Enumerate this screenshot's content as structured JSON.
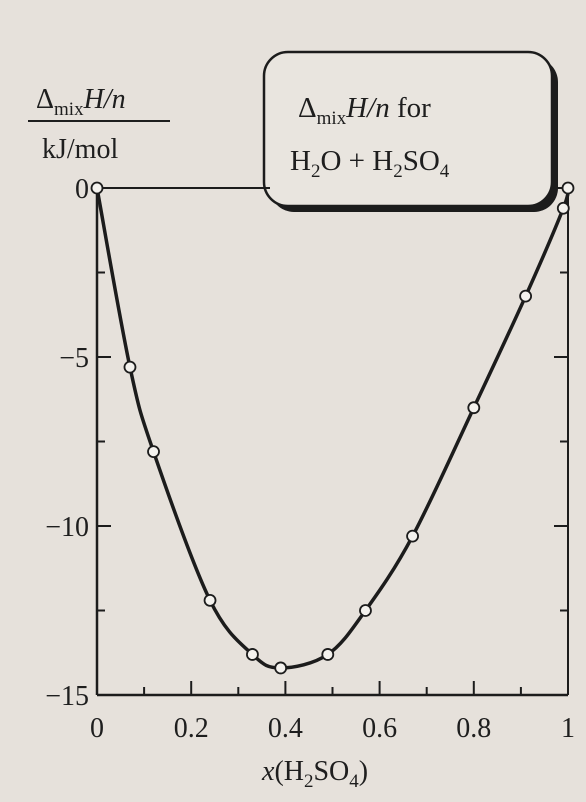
{
  "chart_data": {
    "type": "line",
    "title": "",
    "annotation": {
      "line1": {
        "delta": "Δ",
        "sub": "mix",
        "var": "H/n",
        "rest": " for"
      },
      "line2": {
        "a": "H",
        "a_sub": "2",
        "b": "O + H",
        "b_sub": "2",
        "c": "SO",
        "c_sub": "4"
      }
    },
    "ylabel": {
      "delta": "Δ",
      "sub": "mix",
      "var": "H/n",
      "unit": "kJ/mol"
    },
    "xlabel": {
      "var": "x",
      "open": "(H",
      "sub1": "2",
      "mid": "SO",
      "sub2": "4",
      "close": ")"
    },
    "xlim": [
      0,
      1
    ],
    "ylim": [
      -15,
      0
    ],
    "x_ticks": [
      {
        "value": 0,
        "label": "0"
      },
      {
        "value": 0.2,
        "label": "0.2"
      },
      {
        "value": 0.4,
        "label": "0.4"
      },
      {
        "value": 0.6,
        "label": "0.6"
      },
      {
        "value": 0.8,
        "label": "0.8"
      },
      {
        "value": 1,
        "label": "1"
      }
    ],
    "x_minor_ticks": [
      0.1,
      0.3,
      0.5,
      0.7,
      0.9
    ],
    "y_ticks": [
      {
        "value": 0,
        "label": "0"
      },
      {
        "value": -5,
        "label": "−5"
      },
      {
        "value": -10,
        "label": "−10"
      },
      {
        "value": -15,
        "label": "−15"
      }
    ],
    "y_minor_ticks": [
      -2.5,
      -7.5,
      -12.5
    ],
    "series": [
      {
        "points": [
          {
            "x": 0,
            "y": 0
          },
          {
            "x": 0.07,
            "y": -5.3
          },
          {
            "x": 0.12,
            "y": -7.8
          },
          {
            "x": 0.24,
            "y": -12.2
          },
          {
            "x": 0.33,
            "y": -13.8
          },
          {
            "x": 0.39,
            "y": -14.2
          },
          {
            "x": 0.49,
            "y": -13.8
          },
          {
            "x": 0.57,
            "y": -12.5
          },
          {
            "x": 0.67,
            "y": -10.3
          },
          {
            "x": 0.8,
            "y": -6.5
          },
          {
            "x": 0.91,
            "y": -3.2
          },
          {
            "x": 0.99,
            "y": -0.6
          },
          {
            "x": 1,
            "y": 0
          }
        ]
      }
    ],
    "grid": false,
    "colors": {
      "line": "#1c1c1c",
      "marker_fill": "#f4f2ee",
      "background": "#e6e1db"
    }
  }
}
